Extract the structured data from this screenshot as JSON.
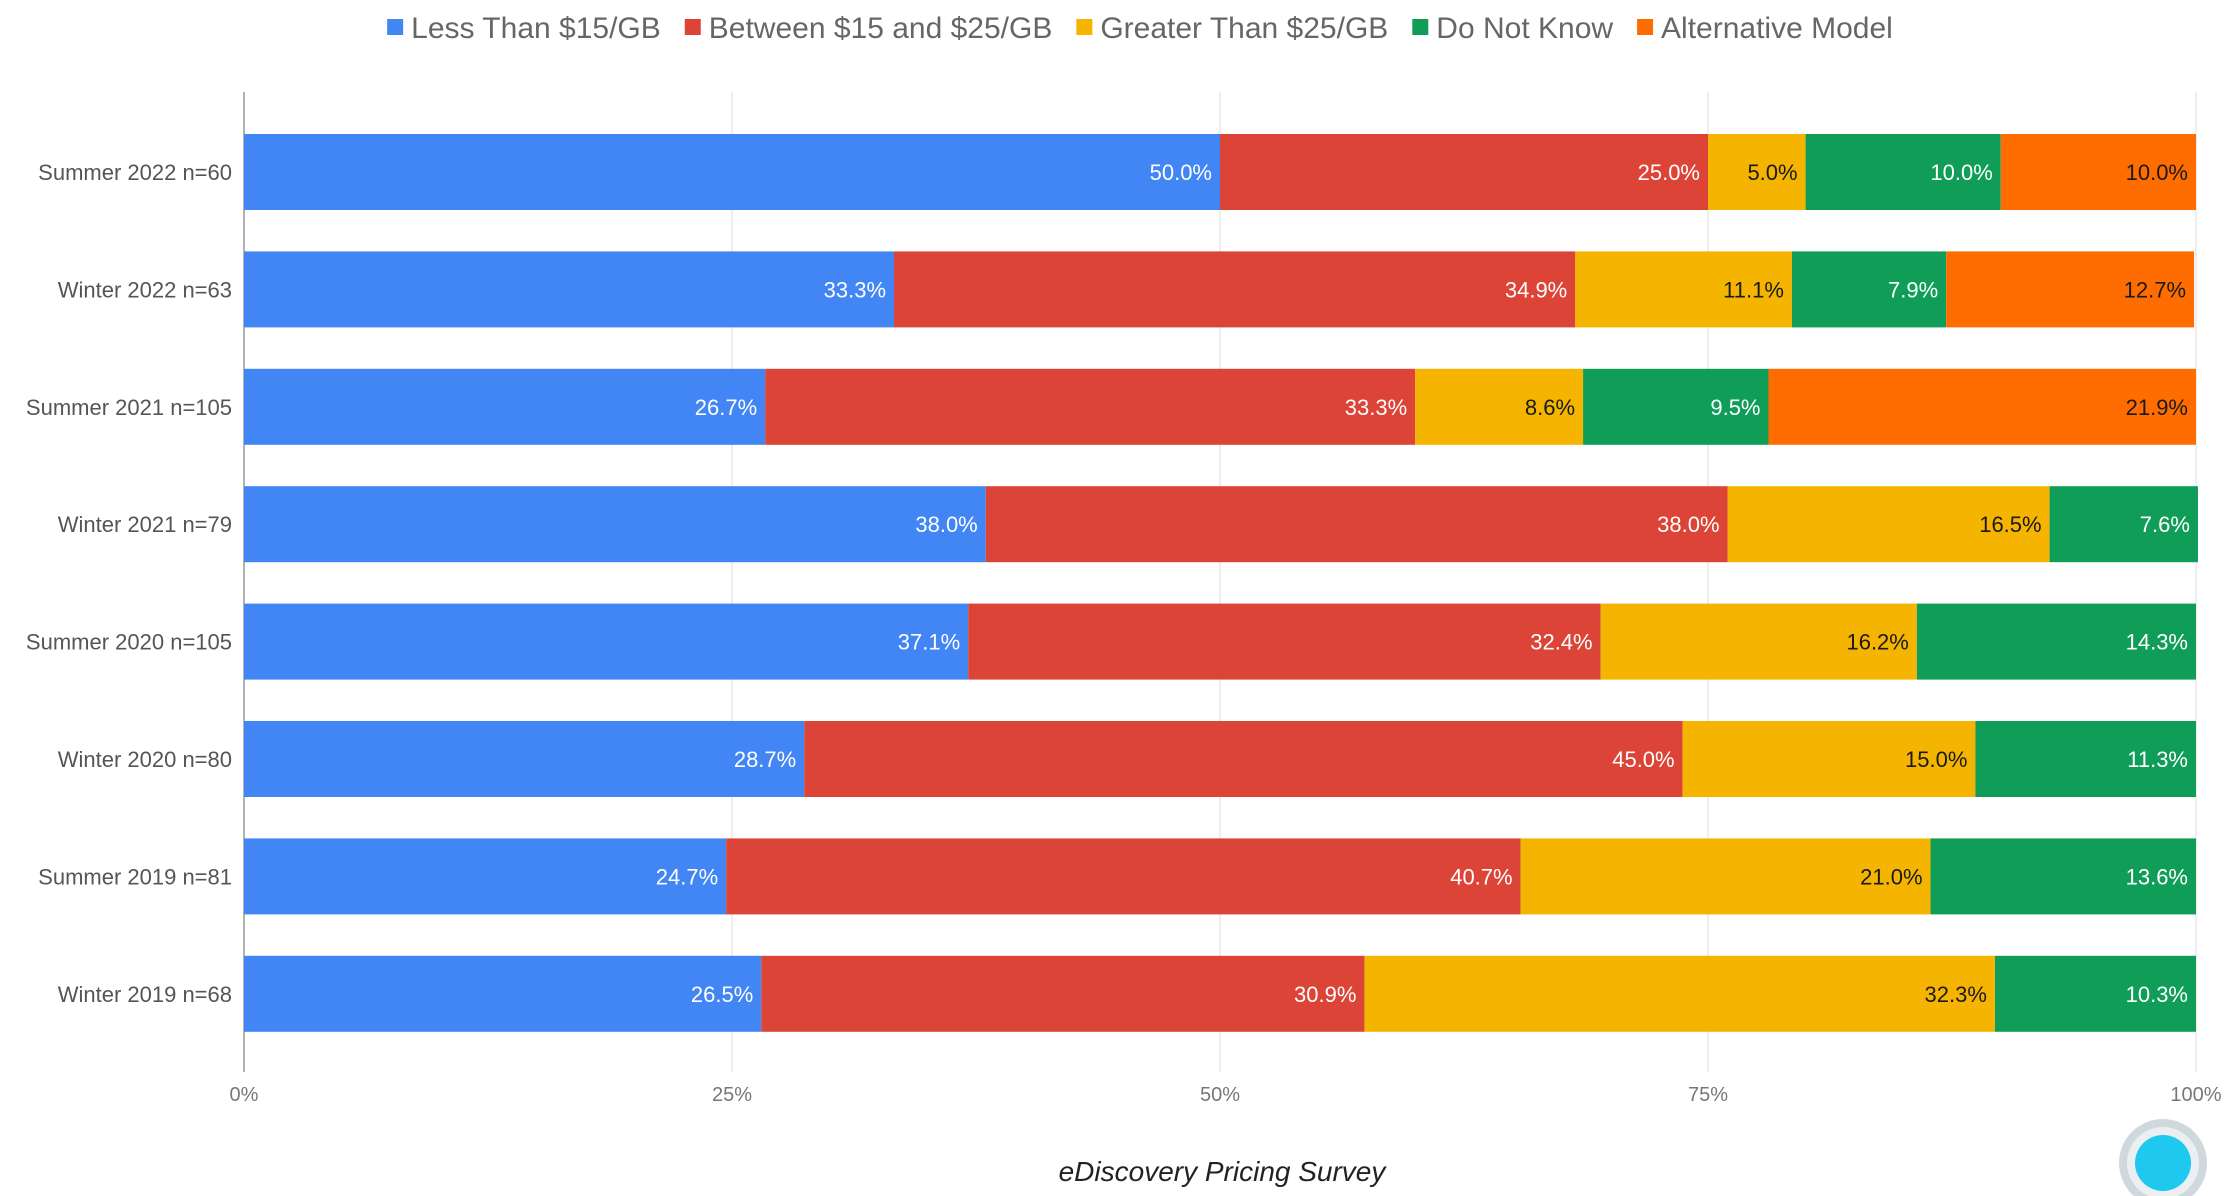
{
  "chart_data": {
    "type": "bar",
    "orientation": "horizontal",
    "stacked": true,
    "percent_stacked": true,
    "categories": [
      "Summer 2022 n=60",
      "Winter 2022 n=63",
      "Summer 2021 n=105",
      "Winter 2021 n=79",
      "Summer 2020 n=105",
      "Winter 2020 n=80",
      "Summer 2019 n=81",
      "Winter 2019 n=68"
    ],
    "series": [
      {
        "name": "Less Than $15/GB",
        "color": "#4285F4",
        "label_color": "#ffffff",
        "values": [
          50.0,
          33.3,
          26.7,
          38.0,
          37.1,
          28.7,
          24.7,
          26.5
        ],
        "labels": [
          "50.0%",
          "33.3%",
          "26.7%",
          "38.0%",
          "37.1%",
          "28.7%",
          "24.7%",
          "26.5%"
        ]
      },
      {
        "name": "Between $15 and $25/GB",
        "color": "#DB4437",
        "label_color": "#ffffff",
        "values": [
          25.0,
          34.9,
          33.3,
          38.0,
          32.4,
          45.0,
          40.7,
          30.9
        ],
        "labels": [
          "25.0%",
          "34.9%",
          "33.3%",
          "38.0%",
          "32.4%",
          "45.0%",
          "40.7%",
          "30.9%"
        ]
      },
      {
        "name": "Greater Than $25/GB",
        "color": "#F4B400",
        "label_color": "#1a1a1a",
        "values": [
          5.0,
          11.1,
          8.6,
          16.5,
          16.2,
          15.0,
          21.0,
          32.3
        ],
        "labels": [
          "5.0%",
          "11.1%",
          "8.6%",
          "16.5%",
          "16.2%",
          "15.0%",
          "21.0%",
          "32.3%"
        ]
      },
      {
        "name": "Do Not Know",
        "color": "#0F9D58",
        "label_color": "#ffffff",
        "values": [
          10.0,
          7.9,
          9.5,
          7.6,
          14.3,
          11.3,
          13.6,
          10.3
        ],
        "labels": [
          "10.0%",
          "7.9%",
          "9.5%",
          "7.6%",
          "14.3%",
          "11.3%",
          "13.6%",
          "10.3%"
        ]
      },
      {
        "name": "Alternative Model",
        "color": "#FF6D00",
        "label_color": "#1a1a1a",
        "values": [
          10.0,
          12.7,
          21.9,
          0,
          0,
          0,
          0,
          0
        ],
        "labels": [
          "10.0%",
          "12.7%",
          "21.9%",
          "",
          "",
          "",
          "",
          ""
        ]
      }
    ],
    "xlim": [
      0,
      100
    ],
    "x_ticks": [
      0,
      25,
      50,
      75,
      100
    ],
    "x_tick_labels": [
      "0%",
      "25%",
      "50%",
      "75%",
      "100%"
    ],
    "grid": true,
    "legend_position": "top",
    "caption": "eDiscovery Pricing Survey"
  }
}
